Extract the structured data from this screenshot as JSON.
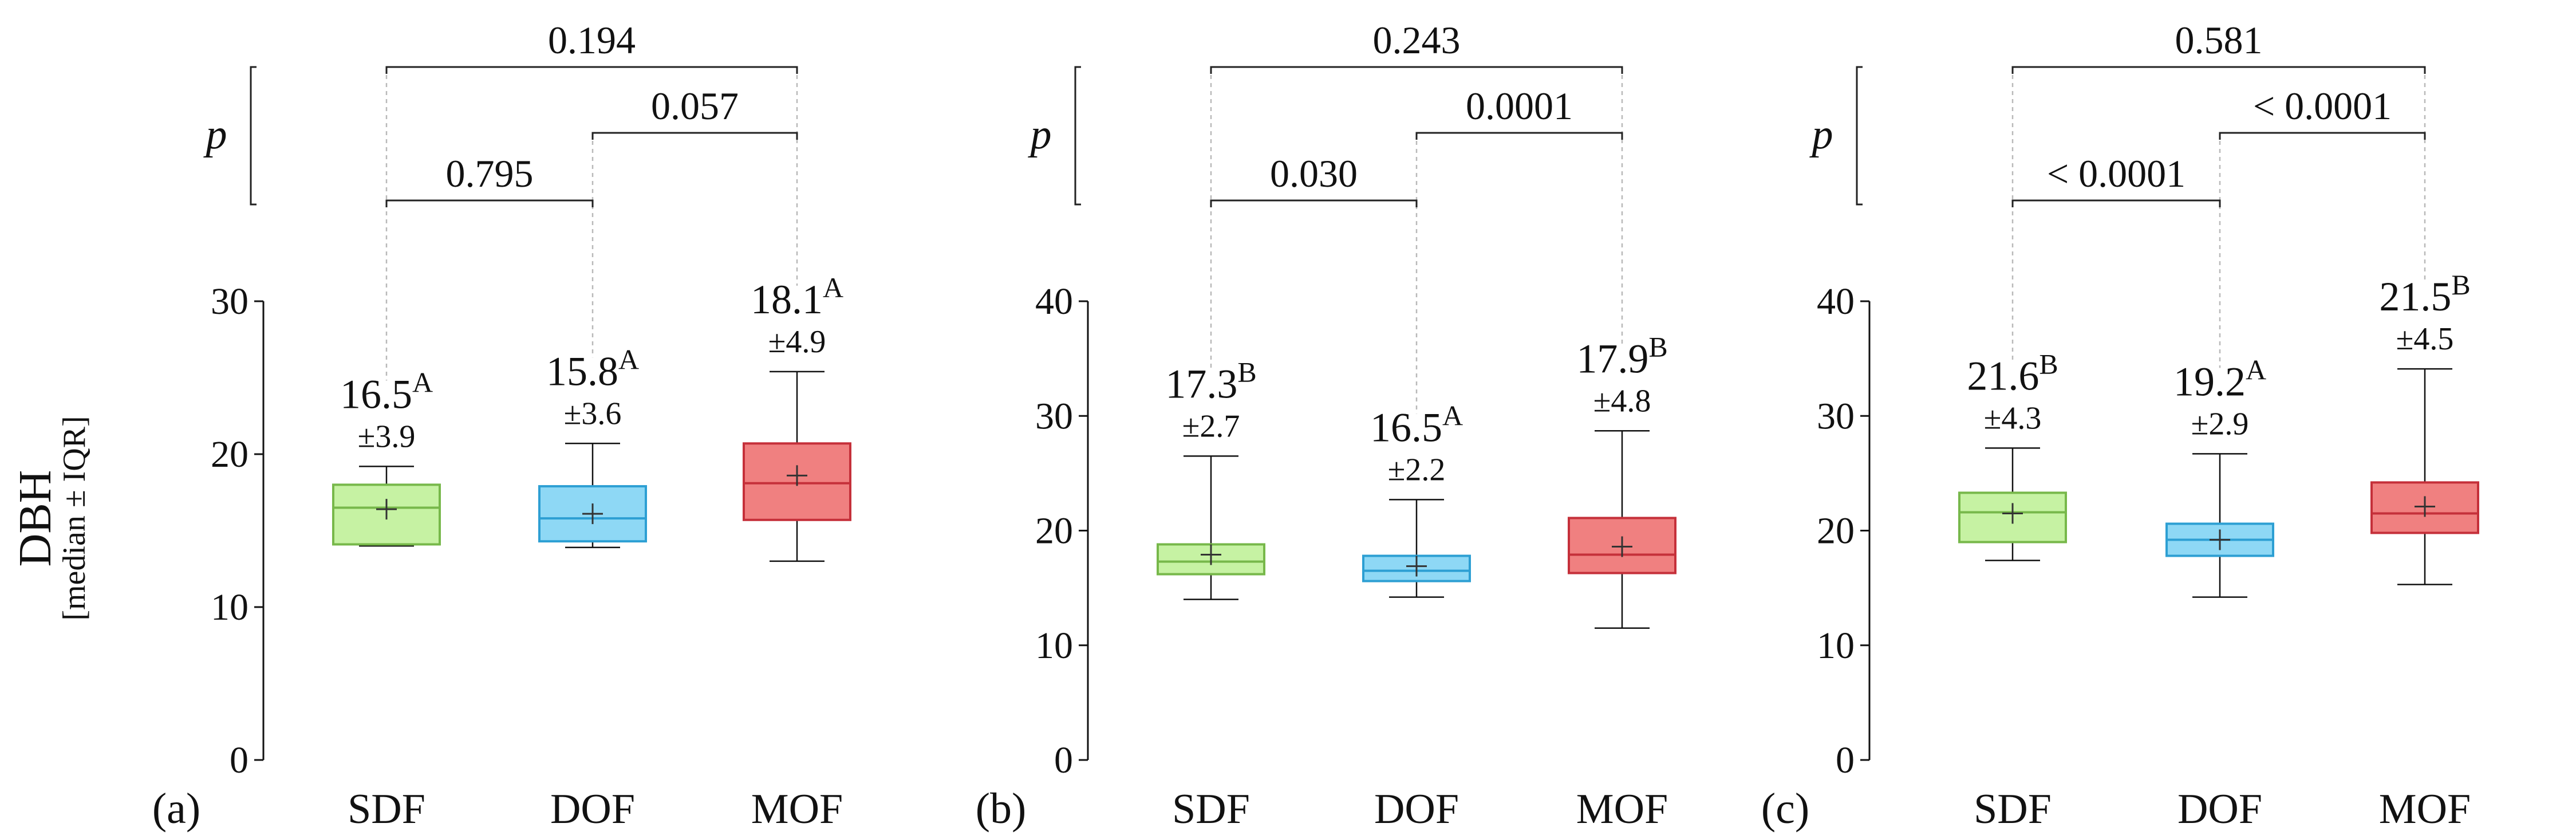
{
  "chart_data": [
    {
      "type": "box",
      "panel_label": "(a)",
      "ylim": [
        0,
        30
      ],
      "yticks": [
        0,
        10,
        20,
        30
      ],
      "categories": [
        "SDF",
        "DOF",
        "MOF"
      ],
      "boxes": [
        {
          "name": "SDF",
          "whisker_low": 14.0,
          "q1": 14.1,
          "median": 16.5,
          "q3": 18.0,
          "whisker_high": 19.2,
          "mean": 16.4,
          "median_text": "16.5",
          "letter": "A",
          "iqr_text": "±3.9"
        },
        {
          "name": "DOF",
          "whisker_low": 13.9,
          "q1": 14.3,
          "median": 15.8,
          "q3": 17.9,
          "whisker_high": 20.7,
          "mean": 16.1,
          "median_text": "15.8",
          "letter": "A",
          "iqr_text": "±3.6"
        },
        {
          "name": "MOF",
          "whisker_low": 13.0,
          "q1": 15.7,
          "median": 18.1,
          "q3": 20.7,
          "whisker_high": 25.4,
          "mean": 18.6,
          "median_text": "18.1",
          "letter": "A",
          "iqr_text": "±4.9"
        }
      ],
      "p_label": "p",
      "comparisons": [
        {
          "from": "SDF",
          "to": "DOF",
          "p": "0.795"
        },
        {
          "from": "DOF",
          "to": "MOF",
          "p": "0.057"
        },
        {
          "from": "SDF",
          "to": "MOF",
          "p": "0.194"
        }
      ]
    },
    {
      "type": "box",
      "panel_label": "(b)",
      "ylim": [
        0,
        40
      ],
      "yticks": [
        0,
        10,
        20,
        30,
        40
      ],
      "categories": [
        "SDF",
        "DOF",
        "MOF"
      ],
      "boxes": [
        {
          "name": "SDF",
          "whisker_low": 14.0,
          "q1": 16.2,
          "median": 17.3,
          "q3": 18.8,
          "whisker_high": 26.5,
          "mean": 17.9,
          "median_text": "17.3",
          "letter": "B",
          "iqr_text": "±2.7"
        },
        {
          "name": "DOF",
          "whisker_low": 14.2,
          "q1": 15.6,
          "median": 16.5,
          "q3": 17.8,
          "whisker_high": 22.7,
          "mean": 16.9,
          "median_text": "16.5",
          "letter": "A",
          "iqr_text": "±2.2"
        },
        {
          "name": "MOF",
          "whisker_low": 11.5,
          "q1": 16.3,
          "median": 17.9,
          "q3": 21.1,
          "whisker_high": 28.7,
          "mean": 18.6,
          "median_text": "17.9",
          "letter": "B",
          "iqr_text": "±4.8"
        }
      ],
      "p_label": "p",
      "comparisons": [
        {
          "from": "SDF",
          "to": "DOF",
          "p": "0.030"
        },
        {
          "from": "DOF",
          "to": "MOF",
          "p": "0.0001"
        },
        {
          "from": "SDF",
          "to": "MOF",
          "p": "0.243"
        }
      ]
    },
    {
      "type": "box",
      "panel_label": "(c)",
      "ylim": [
        0,
        40
      ],
      "yticks": [
        0,
        10,
        20,
        30,
        40
      ],
      "categories": [
        "SDF",
        "DOF",
        "MOF"
      ],
      "boxes": [
        {
          "name": "SDF",
          "whisker_low": 17.4,
          "q1": 19.0,
          "median": 21.6,
          "q3": 23.3,
          "whisker_high": 27.2,
          "mean": 21.5,
          "median_text": "21.6",
          "letter": "B",
          "iqr_text": "±4.3"
        },
        {
          "name": "DOF",
          "whisker_low": 14.2,
          "q1": 17.8,
          "median": 19.2,
          "q3": 20.6,
          "whisker_high": 26.7,
          "mean": 19.2,
          "median_text": "19.2",
          "letter": "A",
          "iqr_text": "±2.9"
        },
        {
          "name": "MOF",
          "whisker_low": 15.3,
          "q1": 19.8,
          "median": 21.5,
          "q3": 24.2,
          "whisker_high": 34.1,
          "mean": 22.1,
          "median_text": "21.5",
          "letter": "B",
          "iqr_text": "±4.5"
        }
      ],
      "p_label": "p",
      "comparisons": [
        {
          "from": "SDF",
          "to": "DOF",
          "p": "< 0.0001"
        },
        {
          "from": "DOF",
          "to": "MOF",
          "p": "< 0.0001"
        },
        {
          "from": "SDF",
          "to": "MOF",
          "p": "0.581"
        }
      ]
    }
  ],
  "ylabel": {
    "main": "DBH",
    "sub": "[median ± IQR]"
  },
  "colors": {
    "SDF": {
      "fill": "#c6f2a3",
      "stroke": "#77b84a"
    },
    "DOF": {
      "fill": "#8ed8f5",
      "stroke": "#2d9fd3"
    },
    "MOF": {
      "fill": "#f08080",
      "stroke": "#c5303a"
    }
  }
}
